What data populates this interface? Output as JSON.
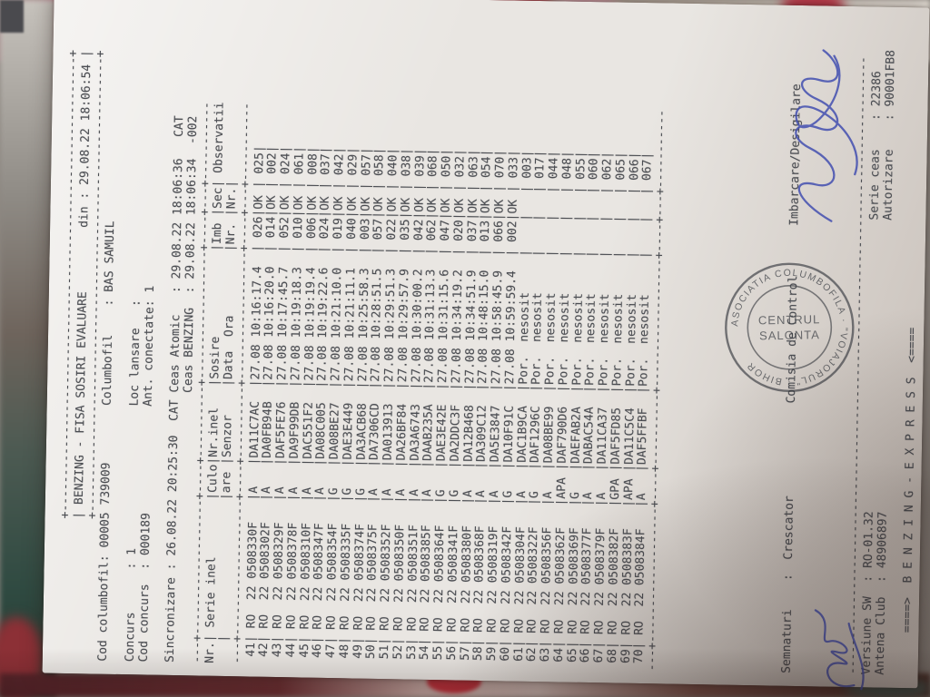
{
  "palette": {
    "paper": "#e9e6e2",
    "ink": "#4b4d52",
    "pen_blue": "#4450b0",
    "stamp_ink": "#3d4046",
    "fabric_maroon": "#542329",
    "fabric_pink": "#d27e95",
    "fabric_red": "#b03a44",
    "fabric_green": "#77936b",
    "fabric_teal": "#2f4a41",
    "fabric_cream": "#ece5da"
  },
  "receipt": {
    "title": "BENZING - FISA SOSIRI EVALUARE",
    "din_label": "din :",
    "din_value": "29.08.22 18:06:54",
    "header": {
      "cod_columbofil_label": "Cod columbofil:",
      "cod_columbofil": "00005 739009",
      "columbofil_label": "Columbofil    :",
      "columbofil": "BAS SAMUIL",
      "concurs_label": "Concurs      :",
      "concurs": "1",
      "loc_lansare_label": "Loc lansare   :",
      "loc_lansare": "",
      "cod_concurs_label": "Cod concurs  :",
      "cod_concurs": "000189",
      "ant_conectate_label": "Ant. conectate:",
      "ant_conectate": "1",
      "sincronizare_label": "Sincronizare :",
      "sincronizare": "26.08.22 20:25:30",
      "ceas_atomic_label": "CAT Ceas Atomic   :",
      "ceas_atomic": "29.08.22 18:06:36",
      "ceas_atomic_diff": "CAT",
      "ceas_benzing_label": "Ceas BENZING  :",
      "ceas_benzing": "29.08.22 18:06:34",
      "ceas_benzing_diff": "-002"
    },
    "table": {
      "headers": {
        "nr": "Nr.",
        "serie": "Serie inel",
        "culo_1": "Culo",
        "culo_2": "are",
        "senzor_1": "Nr.inel",
        "senzor_2": "Senzor",
        "sosire_1": "Sosire",
        "sosire_2": "Data  Ora",
        "imb_1": "Imb",
        "imb_2": "Nr.",
        "sec_1": "Sec",
        "sec_2": "Nr.",
        "obs": "Observatii"
      },
      "country": "RO",
      "ring_year": "22",
      "not_arrived_text": "Por.  nesosit",
      "rows": [
        [
          "41",
          "0508330F",
          "A",
          "DA11C7AC",
          "27.08 10:16:17.4",
          "026",
          "OK",
          "025"
        ],
        [
          "42",
          "0508302F",
          "A",
          "DA0FB94B",
          "27.08 10:16:20.0",
          "014",
          "OK",
          "002"
        ],
        [
          "43",
          "0508329F",
          "A",
          "DAF5FE76",
          "27.08 10:17:45.7",
          "052",
          "OK",
          "024"
        ],
        [
          "44",
          "0508378F",
          "A",
          "DA9F99DB",
          "27.08 10:19:18.3",
          "010",
          "OK",
          "061"
        ],
        [
          "45",
          "0508310F",
          "A",
          "DAC551F2",
          "27.08 10:19:19.4",
          "006",
          "OK",
          "008"
        ],
        [
          "46",
          "0508347F",
          "A",
          "DA08C005",
          "27.08 10:19:22.6",
          "024",
          "OK",
          "037"
        ],
        [
          "47",
          "0508354F",
          "G",
          "DA08BE27",
          "27.08 10:21:10.0",
          "019",
          "OK",
          "042"
        ],
        [
          "48",
          "0508335F",
          "G",
          "DAE3E449",
          "27.08 10:21:11.1",
          "040",
          "OK",
          "029"
        ],
        [
          "49",
          "0508374F",
          "G",
          "DA3ACB68",
          "27.08 10:25:58.3",
          "003",
          "OK",
          "057"
        ],
        [
          "50",
          "0508375F",
          "A",
          "DA7306CD",
          "27.08 10:28:51.5",
          "057",
          "OK",
          "058"
        ],
        [
          "51",
          "0508352F",
          "A",
          "DA013913",
          "27.08 10:29:51.3",
          "022",
          "OK",
          "040"
        ],
        [
          "52",
          "0508350F",
          "A",
          "DA26BF84",
          "27.08 10:29:57.9",
          "035",
          "OK",
          "038"
        ],
        [
          "53",
          "0508351F",
          "A",
          "DA3A6743",
          "27.08 10:30:00.2",
          "042",
          "OK",
          "039"
        ],
        [
          "54",
          "0508385F",
          "A",
          "DAAB235A",
          "27.08 10:31:13.3",
          "062",
          "OK",
          "068"
        ],
        [
          "55",
          "0508364F",
          "G",
          "DAE3E42E",
          "27.08 10:31:15.6",
          "047",
          "OK",
          "050"
        ],
        [
          "56",
          "0508341F",
          "G",
          "DA2DDC3F",
          "27.08 10:34:19.2",
          "020",
          "OK",
          "032"
        ],
        [
          "57",
          "0508380F",
          "A",
          "DA12B468",
          "27.08 10:34:51.9",
          "037",
          "OK",
          "063"
        ],
        [
          "58",
          "0508368F",
          "A",
          "DA309C12",
          "27.08 10:48:15.0",
          "013",
          "OK",
          "054"
        ],
        [
          "59",
          "0508319F",
          "A",
          "DA5E3847",
          "27.08 10:58:45.9",
          "066",
          "OK",
          "070"
        ],
        [
          "60",
          "0508342F",
          "G",
          "DA10F91C",
          "27.08 10:59:59.4",
          "002",
          "OK",
          "033"
        ],
        [
          "61",
          "0508304F",
          "A",
          "DAC1B9CA",
          "",
          "",
          "",
          "003"
        ],
        [
          "62",
          "0508322F",
          "G",
          "DAF1296C",
          "",
          "",
          "",
          "017"
        ],
        [
          "63",
          "0508356F",
          "A",
          "DA08BE99",
          "",
          "",
          "",
          "044"
        ],
        [
          "64",
          "0508362F",
          "APA",
          "DAF790D6",
          "",
          "",
          "",
          "048"
        ],
        [
          "65",
          "0508369F",
          "G",
          "DAEFAB2A",
          "",
          "",
          "",
          "055"
        ],
        [
          "66",
          "0508377F",
          "A",
          "DABAC54A",
          "",
          "",
          "",
          "060"
        ],
        [
          "67",
          "0508379F",
          "A",
          "DA11CA37",
          "",
          "",
          "",
          "062"
        ],
        [
          "68",
          "0508382F",
          "GPA",
          "DAF5FD85",
          "",
          "",
          "",
          "065"
        ],
        [
          "69",
          "0508383F",
          "APA",
          "DA11C5C4",
          "",
          "",
          "",
          "066"
        ],
        [
          "70",
          "0508384F",
          "A",
          "DAF5FFBF",
          "",
          "",
          "",
          "067"
        ]
      ]
    },
    "footer": {
      "semnaturi_label": "Semnaturi",
      "semnaturi_value": "Crescator",
      "comisia": "Comisia de Control",
      "imbarcare": "Imbarcare/Desigilare",
      "versiune_label": "Versiune SW  :",
      "versiune": "RO-01.32",
      "serie_ceas_label": "Serie ceas    :",
      "serie_ceas": "22386",
      "antena_label": "Antena Club  :",
      "antena": "48906897",
      "autorizare_label": "Autorizare    :",
      "autorizare": "90001FB8",
      "benzing_line": "====>  B E N Z I N G - E X P R E S S  <===="
    },
    "stamp": {
      "ring_text": "ASOCIATIA COLUMBOFILA · \"VOIAJORUL\" · BIHOR",
      "center_line1": "CENTRUL",
      "center_line2": "SALONTA"
    }
  }
}
